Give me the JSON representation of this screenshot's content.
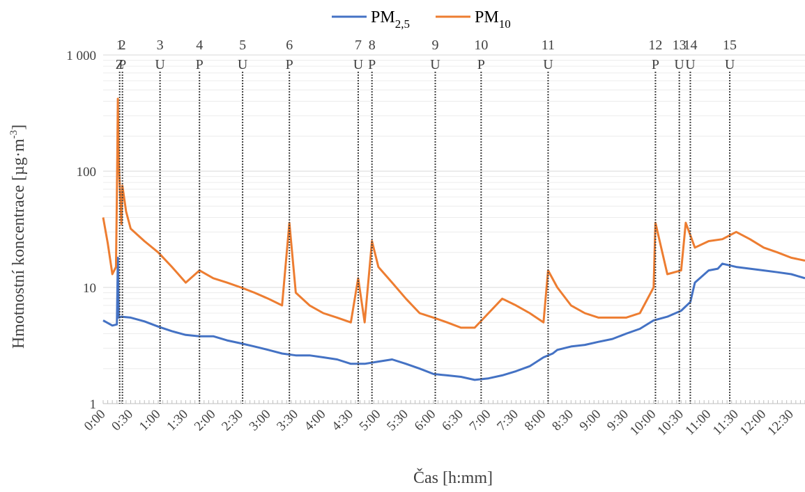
{
  "chart_data": {
    "type": "line",
    "title": "",
    "xlabel": "Čas [h:mm]",
    "ylabel": "Hmotnostní koncentrace [µg·m⁻³]",
    "ylabel_parts": {
      "main": "Hmotnostní koncentrace [µg·m",
      "sup": "-3",
      "end": "]"
    },
    "y_scale": "log",
    "ylim": [
      1,
      1000
    ],
    "y_ticks": [
      1,
      10,
      100,
      1000
    ],
    "y_tick_labels": [
      "1",
      "10",
      "100",
      "1 000"
    ],
    "xlim": [
      "0:00",
      "12:45"
    ],
    "x_tick_labels": [
      "0:00",
      "0:30",
      "1:00",
      "1:30",
      "2:00",
      "2:30",
      "3:00",
      "3:30",
      "4:00",
      "4:30",
      "5:00",
      "5:30",
      "6:00",
      "6:30",
      "7:00",
      "7:30",
      "8:00",
      "8:30",
      "9:00",
      "9:30",
      "10:00",
      "10:30",
      "11:00",
      "11:30",
      "12:00",
      "12:30"
    ],
    "grid": true,
    "legend_position": "top",
    "legend": [
      {
        "base": "PM",
        "sub": "2,5",
        "color": "#4472C4"
      },
      {
        "base": "PM",
        "sub": "10",
        "color": "#ED7D31"
      }
    ],
    "series": [
      {
        "name": "PM2,5",
        "color": "#4472C4",
        "x": [
          "0:00",
          "0:10",
          "0:15",
          "0:16",
          "0:17",
          "0:20",
          "0:30",
          "0:45",
          "1:00",
          "1:15",
          "1:30",
          "1:45",
          "2:00",
          "2:15",
          "2:30",
          "2:45",
          "3:00",
          "3:15",
          "3:30",
          "3:45",
          "4:00",
          "4:15",
          "4:30",
          "4:45",
          "5:00",
          "5:15",
          "5:30",
          "5:45",
          "6:00",
          "6:15",
          "6:30",
          "6:45",
          "7:00",
          "7:15",
          "7:30",
          "7:45",
          "8:00",
          "8:10",
          "8:15",
          "8:30",
          "8:45",
          "9:00",
          "9:15",
          "9:30",
          "9:45",
          "10:00",
          "10:15",
          "10:30",
          "10:40",
          "10:45",
          "11:00",
          "11:10",
          "11:15",
          "11:30",
          "11:45",
          "12:00",
          "12:15",
          "12:30",
          "12:45"
        ],
        "values": [
          5.2,
          4.7,
          4.8,
          18,
          5.5,
          5.6,
          5.5,
          5.1,
          4.6,
          4.2,
          3.9,
          3.8,
          3.8,
          3.5,
          3.3,
          3.1,
          2.9,
          2.7,
          2.6,
          2.6,
          2.5,
          2.4,
          2.2,
          2.2,
          2.3,
          2.4,
          2.2,
          2.0,
          1.8,
          1.75,
          1.7,
          1.6,
          1.65,
          1.75,
          1.9,
          2.1,
          2.5,
          2.7,
          2.9,
          3.1,
          3.2,
          3.4,
          3.6,
          4.0,
          4.4,
          5.2,
          5.6,
          6.3,
          7.5,
          11,
          14,
          14.5,
          16,
          15,
          14.5,
          14,
          13.5,
          13,
          12
        ]
      },
      {
        "name": "PM10",
        "color": "#ED7D31",
        "x": [
          "0:00",
          "0:05",
          "0:10",
          "0:14",
          "0:15",
          "0:16",
          "0:17",
          "0:20",
          "0:21",
          "0:25",
          "0:30",
          "0:45",
          "1:00",
          "1:15",
          "1:30",
          "1:45",
          "2:00",
          "2:15",
          "2:30",
          "2:45",
          "3:00",
          "3:15",
          "3:23",
          "3:30",
          "3:45",
          "4:00",
          "4:15",
          "4:30",
          "4:38",
          "4:45",
          "4:53",
          "5:00",
          "5:15",
          "5:30",
          "5:45",
          "6:00",
          "6:15",
          "6:30",
          "6:45",
          "7:00",
          "7:15",
          "7:30",
          "7:45",
          "8:00",
          "8:05",
          "8:15",
          "8:30",
          "8:45",
          "9:00",
          "9:15",
          "9:30",
          "9:45",
          "10:00",
          "10:02",
          "10:15",
          "10:30",
          "10:35",
          "10:45",
          "11:00",
          "11:15",
          "11:30",
          "11:45",
          "12:00",
          "12:15",
          "12:30",
          "12:45"
        ],
        "values": [
          40,
          24,
          13,
          15,
          60,
          420,
          120,
          35,
          75,
          45,
          32,
          25,
          20,
          15,
          11,
          14,
          12,
          11,
          10,
          9,
          8,
          7,
          36,
          9,
          7,
          6,
          5.5,
          5,
          12,
          5,
          25,
          15,
          11,
          8,
          6,
          5.5,
          5,
          4.5,
          4.5,
          6,
          8,
          7,
          6,
          5,
          14,
          10,
          7,
          6,
          5.5,
          5.5,
          5.5,
          6,
          10,
          36,
          13,
          14,
          36,
          22,
          25,
          26,
          30,
          26,
          22,
          20,
          18,
          17
        ]
      }
    ],
    "events": [
      {
        "x": "0:18",
        "number": "1",
        "code": "Z"
      },
      {
        "x": "0:21",
        "number": "2",
        "code": "P"
      },
      {
        "x": "1:02",
        "number": "3",
        "code": "U"
      },
      {
        "x": "1:45",
        "number": "4",
        "code": "P"
      },
      {
        "x": "2:32",
        "number": "5",
        "code": "U"
      },
      {
        "x": "3:23",
        "number": "6",
        "code": "P"
      },
      {
        "x": "4:38",
        "number": "7",
        "code": "U"
      },
      {
        "x": "4:53",
        "number": "8",
        "code": "P"
      },
      {
        "x": "6:02",
        "number": "9",
        "code": "U"
      },
      {
        "x": "6:52",
        "number": "10",
        "code": "P"
      },
      {
        "x": "8:05",
        "number": "11",
        "code": "U"
      },
      {
        "x": "10:02",
        "number": "12",
        "code": "P"
      },
      {
        "x": "10:28",
        "number": "13",
        "code": "U"
      },
      {
        "x": "10:40",
        "number": "14",
        "code": "U"
      },
      {
        "x": "11:23",
        "number": "15",
        "code": "U"
      }
    ]
  }
}
